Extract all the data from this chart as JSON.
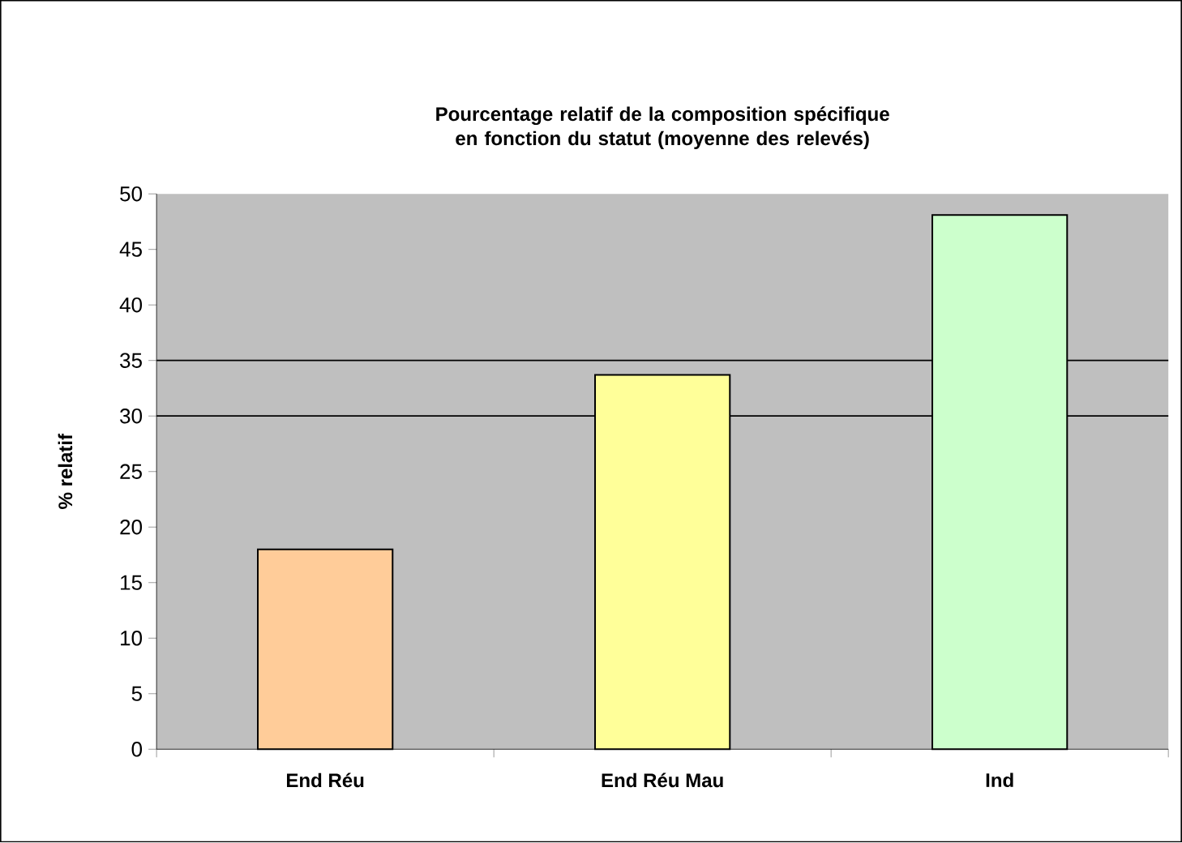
{
  "chart_data": {
    "type": "bar",
    "title": "Pourcentage relatif de la composition spécifique en fonction du statut (moyenne des relevés)",
    "ylabel": "% relatif",
    "categories": [
      "End Réu",
      "End Réu Mau",
      "Ind"
    ],
    "values": [
      18.0,
      33.7,
      48.1
    ],
    "colors": [
      "#ffcc99",
      "#ffff99",
      "#ccffcc"
    ],
    "ylim": [
      0,
      50
    ],
    "yticks": [
      0,
      5,
      10,
      15,
      20,
      25,
      30,
      35,
      40,
      45,
      50
    ],
    "ref_lines": [
      {
        "axis": "y",
        "value": 30,
        "color": "#000000"
      },
      {
        "axis": "y",
        "value": 35,
        "color": "#000000"
      }
    ]
  }
}
